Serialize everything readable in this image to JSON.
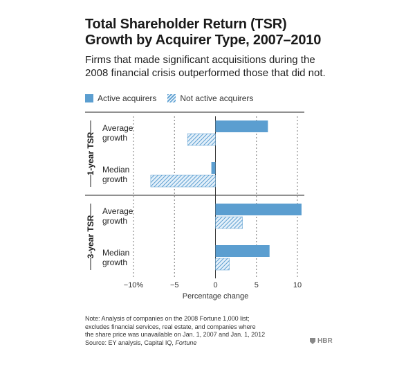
{
  "chart_data": {
    "type": "bar",
    "orientation": "horizontal",
    "title": "Total Shareholder Return (TSR) Growth by Acquirer Type, 2007–2010",
    "subtitle": "Firms that made significant acquisitions during the 2008 financial crisis outperformed those that did not.",
    "xlabel": "Percentage change",
    "xlim": [
      -10,
      10.5
    ],
    "xticks": [
      -10,
      -5,
      0,
      5,
      10
    ],
    "xtick_labels": [
      "−10%",
      "−5",
      "0",
      "5",
      "10"
    ],
    "groups": [
      {
        "label": "1-year TSR",
        "rows": [
          {
            "label": [
              "Average",
              "growth"
            ],
            "active": 6.4,
            "not_active": -3.4
          },
          {
            "label": [
              "Median",
              "growth"
            ],
            "active": -0.5,
            "not_active": -7.9
          }
        ]
      },
      {
        "label": "3-year TSR",
        "rows": [
          {
            "label": [
              "Average",
              "growth"
            ],
            "active": 10.5,
            "not_active": 3.3
          },
          {
            "label": [
              "Median",
              "growth"
            ],
            "active": 6.6,
            "not_active": 1.7
          }
        ]
      }
    ],
    "series": [
      {
        "name": "Active acquirers",
        "style": "solid",
        "color": "#5b9ed0"
      },
      {
        "name": "Not active acquirers",
        "style": "hatched",
        "color": "#5b9ed0"
      }
    ]
  },
  "title_line1": "Total Shareholder Return (TSR)",
  "title_line2": "Growth by Acquirer Type, 2007–2010",
  "subtitle_line1": "Firms that made significant acquisitions during the",
  "subtitle_line2": "2008 financial crisis outperformed those that did not.",
  "legend": {
    "active": "Active acquirers",
    "not_active": "Not active acquirers"
  },
  "note": {
    "line1": "Note: Analysis of companies on the 2008 Fortune 1,000 list;",
    "line2": "excludes financial services, real estate, and companies where",
    "line3": "the share price was unavailable on Jan. 1, 2007 and Jan. 1, 2012",
    "source_prefix": "Source: EY analysis, Capital IQ,",
    "source_italic": "Fortune"
  },
  "logo": "HBR"
}
